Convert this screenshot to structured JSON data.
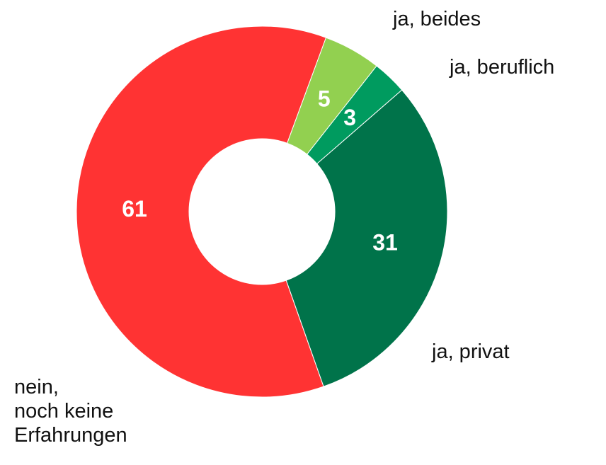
{
  "chart_data": {
    "type": "donut",
    "categories": [
      "ja, beides",
      "ja, beruflich",
      "ja, privat",
      "nein,\nnoch keine\nErfahrungen"
    ],
    "values": [
      5,
      3,
      31,
      61
    ],
    "colors": [
      "#92d050",
      "#009b5f",
      "#00734a",
      "#ff3333"
    ]
  }
}
